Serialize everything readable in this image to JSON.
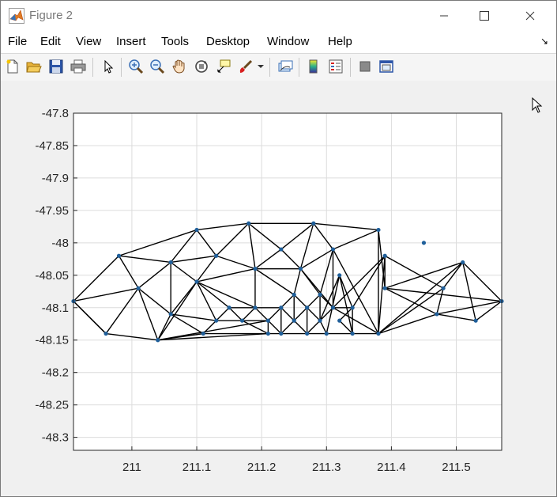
{
  "window": {
    "title": "Figure 2"
  },
  "menu": [
    "File",
    "Edit",
    "View",
    "Insert",
    "Tools",
    "Desktop",
    "Window",
    "Help"
  ],
  "toolbar": [
    "new-figure-icon",
    "open-file-icon",
    "save-icon",
    "print-icon",
    "pointer-icon",
    "zoom-in-icon",
    "zoom-out-icon",
    "pan-hand-icon",
    "rotate-3d-icon",
    "data-cursor-icon",
    "brush-icon",
    "dropdown-arrow-icon",
    "link-plot-icon",
    "colorbar-icon",
    "legend-icon",
    "hide-plot-tools-icon",
    "show-plot-tools-icon"
  ],
  "chart_data": {
    "type": "scatter",
    "title": "",
    "xlabel": "",
    "ylabel": "",
    "xlim": [
      210.91,
      211.57
    ],
    "ylim": [
      -48.32,
      -47.8
    ],
    "xticks": [
      211,
      211.1,
      211.2,
      211.3,
      211.4,
      211.5
    ],
    "xtick_labels": [
      "211",
      "211.1",
      "211.2",
      "211.3",
      "211.4",
      "211.5"
    ],
    "yticks": [
      -47.8,
      -47.85,
      -47.9,
      -47.95,
      -48,
      -48.05,
      -48.1,
      -48.15,
      -48.2,
      -48.25,
      -48.3
    ],
    "ytick_labels": [
      "-47.8",
      "-47.85",
      "-47.9",
      "-47.95",
      "-48",
      "-48.05",
      "-48.1",
      "-48.15",
      "-48.2",
      "-48.25",
      "-48.3"
    ],
    "grid": true,
    "points": [
      [
        210.91,
        -48.09
      ],
      [
        210.96,
        -48.14
      ],
      [
        210.98,
        -48.02
      ],
      [
        211.01,
        -48.07
      ],
      [
        211.04,
        -48.15
      ],
      [
        211.06,
        -48.03
      ],
      [
        211.06,
        -48.11
      ],
      [
        211.1,
        -47.98
      ],
      [
        211.1,
        -48.06
      ],
      [
        211.11,
        -48.14
      ],
      [
        211.13,
        -48.02
      ],
      [
        211.13,
        -48.12
      ],
      [
        211.15,
        -48.1
      ],
      [
        211.17,
        -48.12
      ],
      [
        211.18,
        -47.97
      ],
      [
        211.19,
        -48.04
      ],
      [
        211.19,
        -48.1
      ],
      [
        211.21,
        -48.12
      ],
      [
        211.21,
        -48.14
      ],
      [
        211.23,
        -48.01
      ],
      [
        211.23,
        -48.1
      ],
      [
        211.23,
        -48.14
      ],
      [
        211.25,
        -48.08
      ],
      [
        211.25,
        -48.12
      ],
      [
        211.26,
        -48.04
      ],
      [
        211.27,
        -48.1
      ],
      [
        211.27,
        -48.14
      ],
      [
        211.28,
        -47.97
      ],
      [
        211.29,
        -48.08
      ],
      [
        211.29,
        -48.12
      ],
      [
        211.3,
        -48.14
      ],
      [
        211.31,
        -48.01
      ],
      [
        211.31,
        -48.1
      ],
      [
        211.32,
        -48.05
      ],
      [
        211.32,
        -48.12
      ],
      [
        211.34,
        -48.1
      ],
      [
        211.34,
        -48.14
      ],
      [
        211.38,
        -47.98
      ],
      [
        211.38,
        -48.14
      ],
      [
        211.39,
        -48.02
      ],
      [
        211.39,
        -48.07
      ],
      [
        211.45,
        -48.0
      ],
      [
        211.47,
        -48.11
      ],
      [
        211.48,
        -48.07
      ],
      [
        211.51,
        -48.03
      ],
      [
        211.53,
        -48.12
      ],
      [
        211.57,
        -48.09
      ]
    ],
    "edges": [
      [
        0,
        2
      ],
      [
        0,
        3
      ],
      [
        0,
        1
      ],
      [
        1,
        3
      ],
      [
        1,
        4
      ],
      [
        2,
        7
      ],
      [
        2,
        5
      ],
      [
        2,
        3
      ],
      [
        3,
        5
      ],
      [
        3,
        6
      ],
      [
        3,
        4
      ],
      [
        4,
        6
      ],
      [
        4,
        9
      ],
      [
        4,
        17
      ],
      [
        4,
        18
      ],
      [
        5,
        7
      ],
      [
        5,
        10
      ],
      [
        5,
        8
      ],
      [
        5,
        6
      ],
      [
        6,
        8
      ],
      [
        6,
        11
      ],
      [
        6,
        9
      ],
      [
        7,
        14
      ],
      [
        7,
        10
      ],
      [
        8,
        10
      ],
      [
        8,
        12
      ],
      [
        8,
        11
      ],
      [
        8,
        15
      ],
      [
        8,
        16
      ],
      [
        9,
        11
      ],
      [
        9,
        18
      ],
      [
        10,
        14
      ],
      [
        10,
        15
      ],
      [
        11,
        12
      ],
      [
        11,
        13
      ],
      [
        12,
        13
      ],
      [
        12,
        16
      ],
      [
        13,
        16
      ],
      [
        13,
        17
      ],
      [
        13,
        18
      ],
      [
        14,
        27
      ],
      [
        14,
        19
      ],
      [
        14,
        15
      ],
      [
        15,
        19
      ],
      [
        15,
        24
      ],
      [
        15,
        22
      ],
      [
        15,
        16
      ],
      [
        16,
        17
      ],
      [
        16,
        20
      ],
      [
        17,
        20
      ],
      [
        17,
        21
      ],
      [
        17,
        18
      ],
      [
        18,
        21
      ],
      [
        19,
        27
      ],
      [
        19,
        24
      ],
      [
        20,
        22
      ],
      [
        20,
        23
      ],
      [
        20,
        21
      ],
      [
        21,
        23
      ],
      [
        21,
        26
      ],
      [
        22,
        24
      ],
      [
        22,
        25
      ],
      [
        22,
        23
      ],
      [
        23,
        25
      ],
      [
        23,
        26
      ],
      [
        24,
        27
      ],
      [
        24,
        31
      ],
      [
        24,
        28
      ],
      [
        24,
        32
      ],
      [
        25,
        28
      ],
      [
        25,
        29
      ],
      [
        25,
        26
      ],
      [
        26,
        29
      ],
      [
        26,
        30
      ],
      [
        27,
        31
      ],
      [
        27,
        37
      ],
      [
        28,
        31
      ],
      [
        28,
        32
      ],
      [
        28,
        29
      ],
      [
        29,
        32
      ],
      [
        29,
        33
      ],
      [
        29,
        30
      ],
      [
        30,
        33
      ],
      [
        30,
        36
      ],
      [
        31,
        37
      ],
      [
        31,
        38
      ],
      [
        31,
        32
      ],
      [
        32,
        39
      ],
      [
        32,
        38
      ],
      [
        32,
        35
      ],
      [
        33,
        35
      ],
      [
        33,
        36
      ],
      [
        34,
        35
      ],
      [
        34,
        36
      ],
      [
        35,
        39
      ],
      [
        35,
        36
      ],
      [
        36,
        38
      ],
      [
        37,
        38
      ],
      [
        37,
        40
      ],
      [
        38,
        39
      ],
      [
        38,
        43
      ],
      [
        38,
        42
      ],
      [
        38,
        44
      ],
      [
        39,
        40
      ],
      [
        39,
        43
      ],
      [
        40,
        44
      ],
      [
        40,
        42
      ],
      [
        40,
        46
      ],
      [
        42,
        43
      ],
      [
        42,
        46
      ],
      [
        43,
        44
      ],
      [
        44,
        46
      ],
      [
        44,
        45
      ],
      [
        45,
        46
      ],
      [
        42,
        45
      ],
      [
        1,
        0
      ],
      [
        4,
        8
      ]
    ]
  }
}
